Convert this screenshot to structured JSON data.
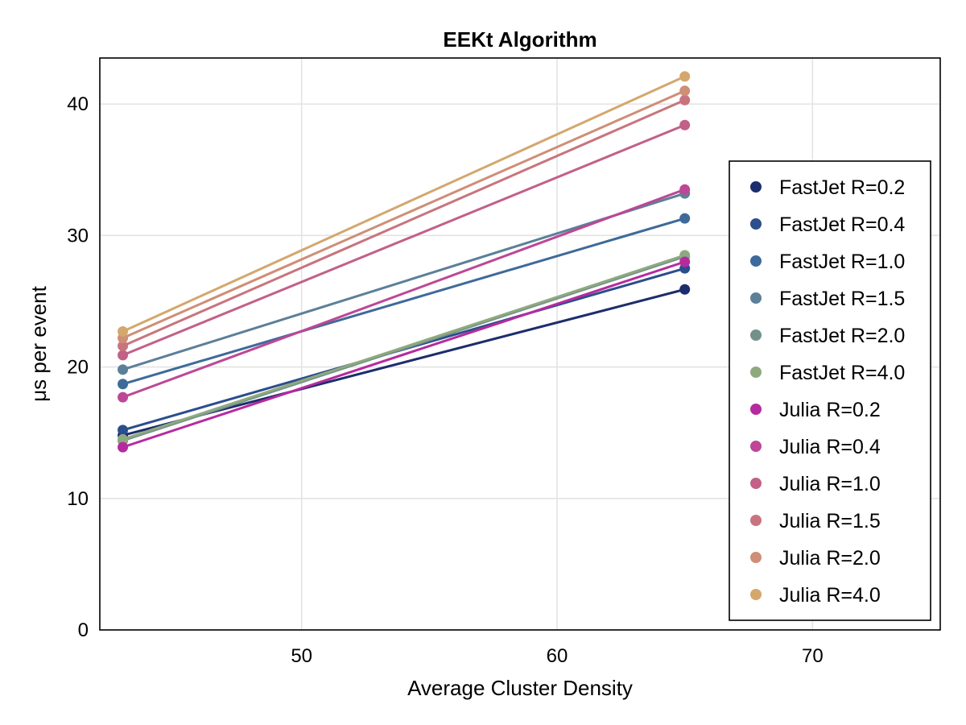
{
  "chart_data": {
    "type": "line",
    "title": "EEKt Algorithm",
    "xlabel": "Average Cluster Density",
    "ylabel": "μs per event",
    "xlim": [
      42.1,
      75
    ],
    "ylim": [
      0,
      43.5
    ],
    "xticks": [
      50,
      60,
      70
    ],
    "yticks": [
      0,
      10,
      20,
      30,
      40
    ],
    "grid": true,
    "legend_position": "bottom-right",
    "x": [
      43,
      65
    ],
    "series": [
      {
        "name": "FastJet R=0.2",
        "color": "#1c2d6d",
        "values": [
          14.8,
          25.9
        ]
      },
      {
        "name": "FastJet R=0.4",
        "color": "#2b4e8c",
        "values": [
          15.2,
          27.5
        ]
      },
      {
        "name": "FastJet R=1.0",
        "color": "#3e6a9a",
        "values": [
          18.7,
          31.3
        ]
      },
      {
        "name": "FastJet R=1.5",
        "color": "#5b8098",
        "values": [
          19.8,
          33.2
        ]
      },
      {
        "name": "FastJet R=2.0",
        "color": "#73918a",
        "values": [
          14.4,
          28.4
        ]
      },
      {
        "name": "FastJet R=4.0",
        "color": "#8fa97f",
        "values": [
          14.5,
          28.5
        ]
      },
      {
        "name": "Julia R=0.2",
        "color": "#b62a9f",
        "values": [
          13.9,
          28.0
        ]
      },
      {
        "name": "Julia R=0.4",
        "color": "#bd4796",
        "values": [
          17.7,
          33.5
        ]
      },
      {
        "name": "Julia R=1.0",
        "color": "#c26088",
        "values": [
          20.9,
          38.4
        ]
      },
      {
        "name": "Julia R=1.5",
        "color": "#c8747e",
        "values": [
          21.6,
          40.3
        ]
      },
      {
        "name": "Julia R=2.0",
        "color": "#cf8e76",
        "values": [
          22.2,
          41.0
        ]
      },
      {
        "name": "Julia R=4.0",
        "color": "#d4a76d",
        "values": [
          22.7,
          42.1
        ]
      }
    ]
  }
}
